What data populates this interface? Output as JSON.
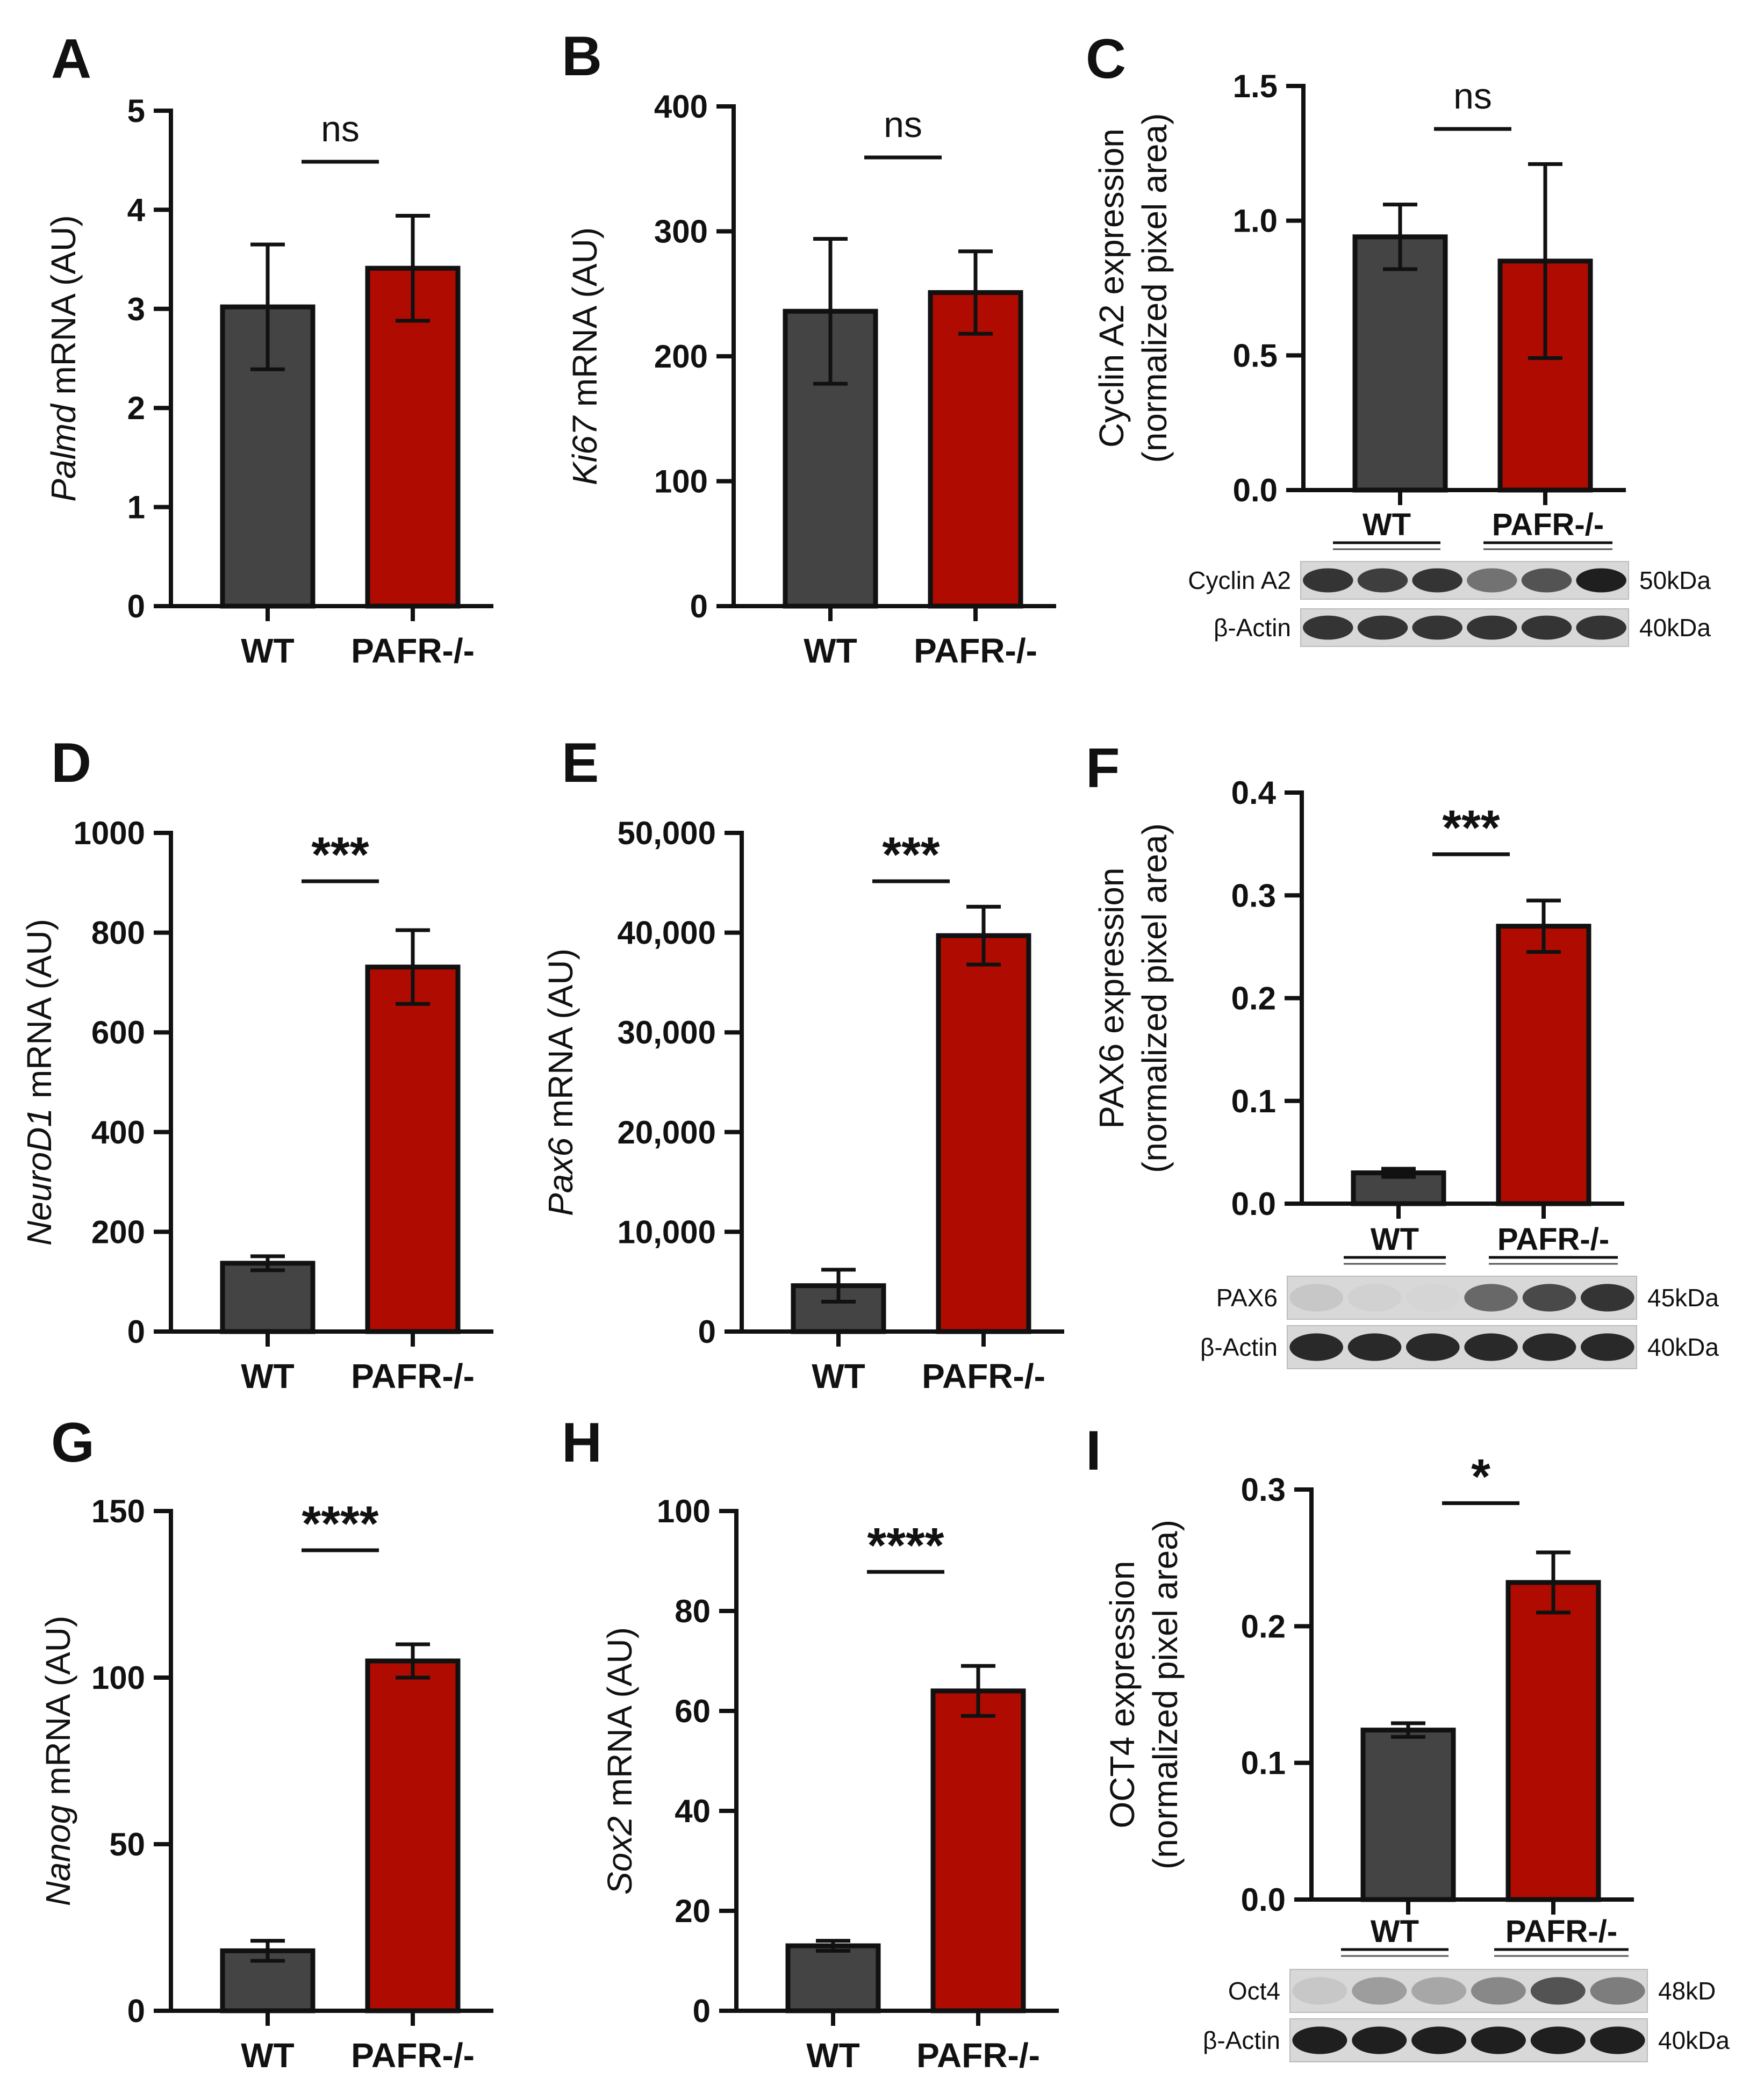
{
  "colors": {
    "wt": "#444444",
    "pafr": "#b00b00",
    "axis": "#111111"
  },
  "chart_data": [
    {
      "panel": "A",
      "type": "bar",
      "categories": [
        "WT",
        "PAFR-/-"
      ],
      "values": [
        3.02,
        3.41
      ],
      "errors": [
        0.63,
        0.53
      ],
      "ylabel_gene": "Palmd",
      "ylabel_rest": " mRNA (AU)",
      "ylabel_line2": "",
      "ylim": [
        0,
        5
      ],
      "yticks": [
        "0",
        "1",
        "2",
        "3",
        "4",
        "5"
      ],
      "significance": "ns",
      "blot": null
    },
    {
      "panel": "B",
      "type": "bar",
      "categories": [
        "WT",
        "PAFR-/-"
      ],
      "values": [
        236,
        251
      ],
      "errors": [
        58,
        33
      ],
      "ylabel_gene": "Ki67",
      "ylabel_rest": " mRNA (AU)",
      "ylabel_line2": "",
      "ylim": [
        0,
        400
      ],
      "yticks": [
        "0",
        "100",
        "200",
        "300",
        "400"
      ],
      "significance": "ns",
      "blot": null
    },
    {
      "panel": "C",
      "type": "bar",
      "categories": [
        "WT",
        "PAFR-/-"
      ],
      "values": [
        0.94,
        0.85
      ],
      "errors": [
        0.12,
        0.36
      ],
      "ylabel_gene": "",
      "ylabel_rest": "Cyclin A2 expression",
      "ylabel_line2": "(normalized pixel area)",
      "ylim": [
        0,
        1.5
      ],
      "yticks": [
        "0.0",
        "0.5",
        "1.0",
        "1.5"
      ],
      "significance": "ns",
      "blot": {
        "proteins": [
          "Cyclin A2",
          "β-Actin"
        ],
        "sizes": [
          "50kDa",
          "40kDa"
        ],
        "intensity": [
          [
            0.85,
            0.8,
            0.85,
            0.55,
            0.7,
            0.95
          ],
          [
            0.85,
            0.85,
            0.85,
            0.85,
            0.85,
            0.85
          ]
        ]
      }
    },
    {
      "panel": "D",
      "type": "bar",
      "categories": [
        "WT",
        "PAFR-/-"
      ],
      "values": [
        137,
        731
      ],
      "errors": [
        14,
        74
      ],
      "ylabel_gene": "NeuroD1",
      "ylabel_rest": " mRNA (AU)",
      "ylabel_line2": "",
      "ylim": [
        0,
        1000
      ],
      "yticks": [
        "0",
        "200",
        "400",
        "600",
        "800",
        "1000"
      ],
      "significance": "***",
      "blot": null
    },
    {
      "panel": "E",
      "type": "bar",
      "categories": [
        "WT",
        "PAFR-/-"
      ],
      "values": [
        4600,
        39700
      ],
      "errors": [
        1600,
        2900
      ],
      "ylabel_gene": "Pax6",
      "ylabel_rest": " mRNA (AU)",
      "ylabel_line2": "",
      "ylim": [
        0,
        50000
      ],
      "yticks": [
        "0",
        "10,000",
        "20,000",
        "30,000",
        "40,000",
        "50,000"
      ],
      "significance": "***",
      "blot": null
    },
    {
      "panel": "F",
      "type": "bar",
      "categories": [
        "WT",
        "PAFR-/-"
      ],
      "values": [
        0.03,
        0.27
      ],
      "errors": [
        0.004,
        0.025
      ],
      "ylabel_gene": "",
      "ylabel_rest": "PAX6 expression",
      "ylabel_line2": "(normalized pixel area)",
      "ylim": [
        0,
        0.4
      ],
      "yticks": [
        "0.0",
        "0.1",
        "0.2",
        "0.3",
        "0.4"
      ],
      "significance": "***",
      "blot": {
        "proteins": [
          "PAX6",
          "β-Actin"
        ],
        "sizes": [
          "45kDa",
          "40kDa"
        ],
        "intensity": [
          [
            0.15,
            0.1,
            0.08,
            0.6,
            0.75,
            0.85
          ],
          [
            0.9,
            0.9,
            0.9,
            0.9,
            0.9,
            0.9
          ]
        ]
      }
    },
    {
      "panel": "G",
      "type": "bar",
      "categories": [
        "WT",
        "PAFR-/-"
      ],
      "values": [
        18,
        105
      ],
      "errors": [
        3,
        5
      ],
      "ylabel_gene": "Nanog",
      "ylabel_rest": " mRNA (AU)",
      "ylabel_line2": "",
      "ylim": [
        0,
        150
      ],
      "yticks": [
        "0",
        "50",
        "100",
        "150"
      ],
      "significance": "****",
      "blot": null
    },
    {
      "panel": "H",
      "type": "bar",
      "categories": [
        "WT",
        "PAFR-/-"
      ],
      "values": [
        13,
        64
      ],
      "errors": [
        1,
        5
      ],
      "ylabel_gene": "Sox2",
      "ylabel_rest": " mRNA (AU)",
      "ylabel_line2": "",
      "ylim": [
        0,
        100
      ],
      "yticks": [
        "0",
        "20",
        "40",
        "60",
        "80",
        "100"
      ],
      "significance": "****",
      "blot": null
    },
    {
      "panel": "I",
      "type": "bar",
      "categories": [
        "WT",
        "PAFR-/-"
      ],
      "values": [
        0.124,
        0.232
      ],
      "errors": [
        0.005,
        0.022
      ],
      "ylabel_gene": "",
      "ylabel_rest": "OCT4 expression",
      "ylabel_line2": "(normalized pixel area)",
      "ylim": [
        0,
        0.3
      ],
      "yticks": [
        "0.0",
        "0.1",
        "0.2",
        "0.3"
      ],
      "significance": "*",
      "blot": {
        "proteins": [
          "Oct4",
          "β-Actin"
        ],
        "sizes": [
          "48kD",
          "40kDa"
        ],
        "intensity": [
          [
            0.15,
            0.35,
            0.3,
            0.45,
            0.7,
            0.5
          ],
          [
            0.95,
            0.95,
            0.95,
            0.95,
            0.95,
            0.95
          ]
        ]
      }
    }
  ]
}
